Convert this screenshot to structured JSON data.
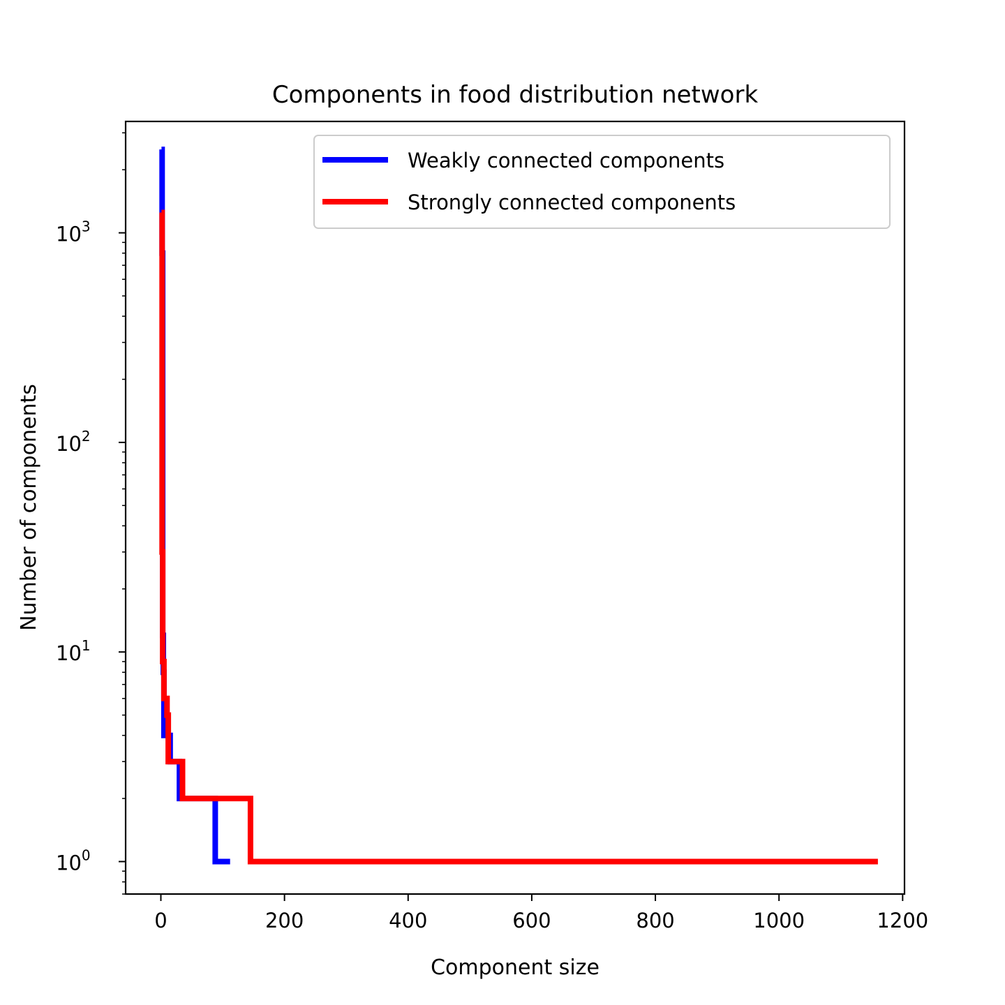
{
  "chart_data": {
    "type": "line",
    "title": "Components in food distribution network",
    "xlabel": "Component size",
    "ylabel": "Number of components",
    "xlim": [
      -57,
      1203
    ],
    "ylim": [
      0.7,
      3400
    ],
    "yscale": "log",
    "grid": false,
    "legend_position": "top-right",
    "x_ticks": [
      0,
      200,
      400,
      600,
      800,
      1000,
      1200
    ],
    "x_tick_labels": [
      "0",
      "200",
      "400",
      "600",
      "800",
      "1000",
      "1200"
    ],
    "y_ticks": [
      1,
      10,
      100,
      1000
    ],
    "y_tick_bases": [
      "10",
      "10",
      "10",
      "10"
    ],
    "y_tick_exponents": [
      "0",
      "1",
      "2",
      "3"
    ],
    "series": [
      {
        "name": "Weakly connected components",
        "color": "#0000ff",
        "step": "post",
        "x": [
          1,
          2,
          3,
          4,
          5,
          10,
          15,
          20,
          30,
          35,
          88,
          112
        ],
        "y": [
          2500,
          800,
          12,
          8,
          4,
          4,
          3,
          3,
          2,
          2,
          1,
          1
        ]
      },
      {
        "name": "Strongly connected components",
        "color": "#ff0000",
        "step": "post",
        "x": [
          1,
          2,
          3,
          5,
          10,
          12,
          20,
          25,
          35,
          50,
          100,
          145,
          150,
          1160
        ],
        "y": [
          1250,
          30,
          9,
          6,
          5,
          3,
          3,
          3,
          2,
          2,
          2,
          1,
          1,
          1
        ]
      }
    ]
  }
}
